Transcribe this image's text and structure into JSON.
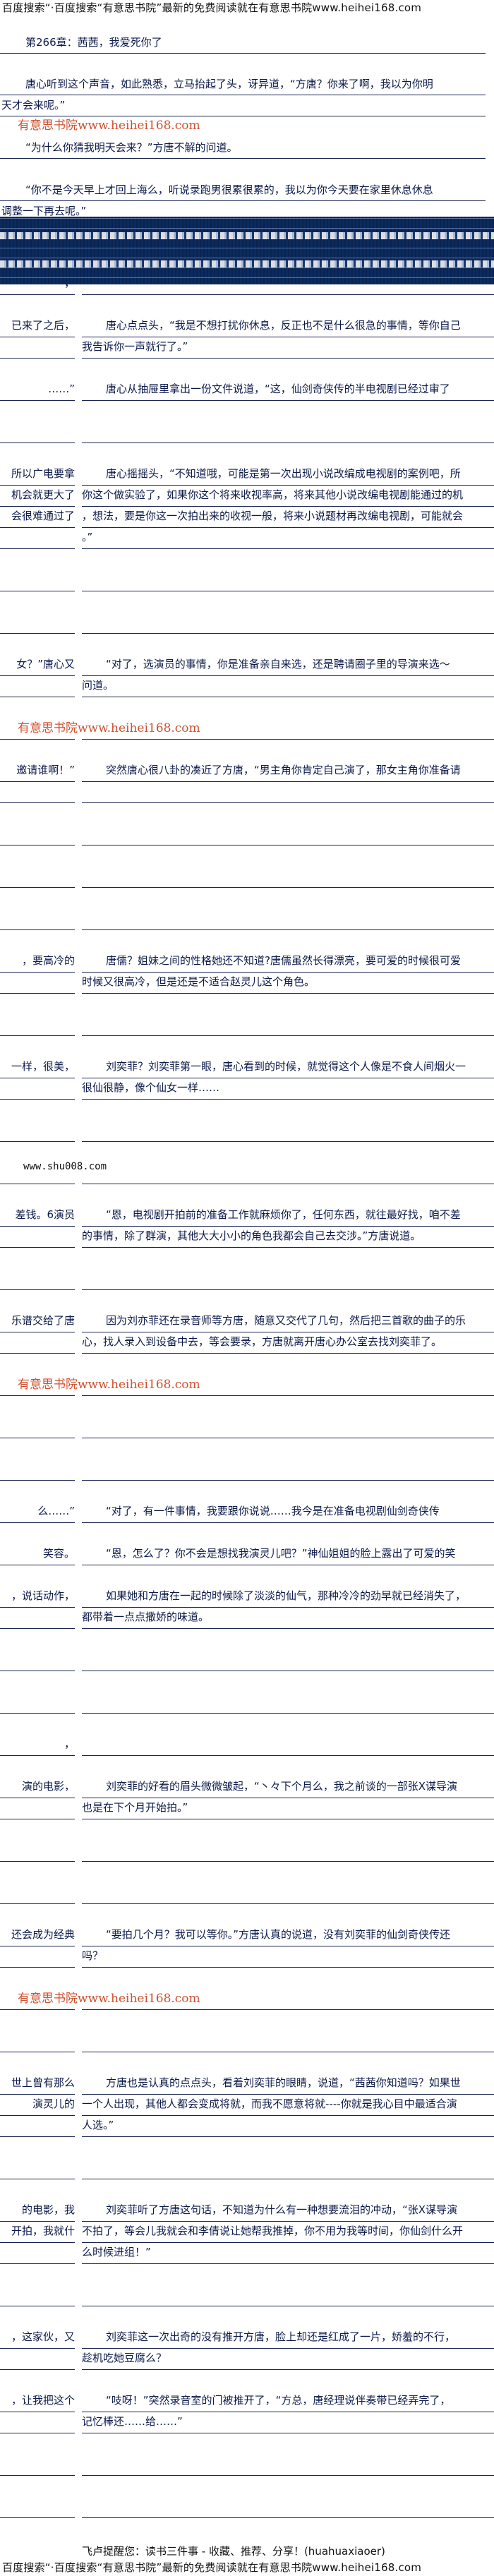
{
  "header_banner": "百度搜索“·百度搜索“有意思书院”最新的免费阅读就在有意思书院www.heihei168.com",
  "watermark": "有意思书院www.heihei168.com",
  "colors": {
    "text": "#0c1a4a",
    "band": "#0b2b5f",
    "watermark": "#d0502e"
  },
  "top_lines": [
    {
      "text": "第266章：茜茜，我爱死你了",
      "indent": true
    },
    {
      "text": "唐心听到这个声音，如此熟悉，立马抬起了头，讶异道，“方唐？你来了啊，我以为你明",
      "indent": true
    },
    {
      "text": "天才会来呢。”",
      "indent": false
    },
    {
      "text": "“为什么你猜我明天会来？”方唐不解的问道。",
      "indent": true
    },
    {
      "text": "“你不是今天早上才回上海么，听说录跑男很累很累的，我以为你今天要在家里休息休息",
      "indent": true
    },
    {
      "text": "调整一下再去呢。”",
      "indent": false
    }
  ],
  "rows": [
    {
      "kind": "start",
      "left": "，",
      "right": ""
    },
    {
      "kind": "start",
      "left": "已来了之后，",
      "right": "唐心点点头，“我是不想打扰你休息，反正也不是什么很急的事情，等你自己"
    },
    {
      "kind": "cont",
      "left": "",
      "right": "我告诉你一声就行了。”"
    },
    {
      "kind": "start",
      "left": "……”",
      "right": "唐心从抽屉里拿出一份文件说道，“这，仙剑奇侠传的半电视剧已经过审了"
    },
    {
      "kind": "start",
      "left": "",
      "right": ""
    },
    {
      "kind": "start",
      "left": "所以广电要拿",
      "right": "唐心摇摇头，“不知道哦，可能是第一次出现小说改编成电视剧的案例吧，所"
    },
    {
      "kind": "cont",
      "left": "机会就更大了",
      "right": "你这个做实验了，如果你这个将来收视率高，将来其他小说改编电视剧能通过的机"
    },
    {
      "kind": "cont",
      "left": "会很难通过了",
      "right": "，想法，要是你这一次拍出来的收视一般，将来小说题材再改编电视剧，可能就会"
    },
    {
      "kind": "cont",
      "left": "",
      "right": "。”"
    },
    {
      "kind": "start",
      "left": "",
      "right": ""
    },
    {
      "kind": "start",
      "left": "",
      "right": ""
    },
    {
      "kind": "start",
      "left": "女？”唐心又",
      "right": "“对了，选演员的事情，你是准备亲自来选，还是聘请圈子里的导演来选～"
    },
    {
      "kind": "cont",
      "left": "",
      "right": "问道。"
    },
    {
      "kind": "start",
      "left": "",
      "right": ""
    },
    {
      "kind": "start",
      "left": "邀请谁啊！”",
      "right": "突然唐心很八卦的凑近了方唐，“男主角你肯定自己演了，那女主角你准备请"
    },
    {
      "kind": "cont",
      "left": "",
      "right": ""
    },
    {
      "kind": "start",
      "left": "",
      "right": ""
    },
    {
      "kind": "start",
      "left": "",
      "right": ""
    },
    {
      "kind": "start",
      "left": "",
      "right": ""
    },
    {
      "kind": "start",
      "left": "，要高冷的",
      "right": "唐儒？姐妹之间的性格她还不知道?唐儒虽然长得漂亮，要可爱的时候很可爱"
    },
    {
      "kind": "cont",
      "left": "",
      "right": "时候又很高冷，但是还是不适合赵灵儿这个角色。"
    },
    {
      "kind": "start",
      "left": "",
      "right": ""
    },
    {
      "kind": "start",
      "left": "一样，很美，",
      "right": "刘奕菲？刘奕菲第一眼，唐心看到的时候，就觉得这个人像是不食人间烟火一"
    },
    {
      "kind": "cont",
      "left": "",
      "right": "很仙很静，像个仙女一样……"
    },
    {
      "kind": "start",
      "left": "",
      "right": ""
    },
    {
      "kind": "start",
      "left": "",
      "right": ""
    },
    {
      "kind": "start",
      "left": "差钱。6演员",
      "right": "“恩，电视剧开拍前的准备工作就麻烦你了，任何东西，就往最好找，咱不差"
    },
    {
      "kind": "cont",
      "left": "",
      "right": "的事情，除了群演，其他大大小小的角色我都会自己去交涉。”方唐说道。"
    },
    {
      "kind": "start",
      "left": "",
      "right": ""
    },
    {
      "kind": "start",
      "left": "乐谱交给了唐",
      "right": "因为刘亦菲还在录音师等方唐，随意又交代了几句，然后把三首歌的曲子的乐"
    },
    {
      "kind": "cont",
      "left": "",
      "right": "心，找人录入到设备中去，等会要录，方唐就离开唐心办公室去找刘奕菲了。"
    },
    {
      "kind": "start",
      "left": "",
      "right": ""
    },
    {
      "kind": "start",
      "left": "",
      "right": ""
    },
    {
      "kind": "start",
      "left": "",
      "right": ""
    },
    {
      "kind": "start",
      "left": "么……”",
      "right": "“对了，有一件事情，我要跟你说说……我今是在准备电视剧仙剑奇侠传"
    },
    {
      "kind": "start",
      "left": "笑容。",
      "right": "“恩，怎么了？你不会是想找我演灵儿吧？”神仙姐姐的脸上露出了可爱的笑"
    },
    {
      "kind": "start",
      "left": "，说话动作，",
      "right": "如果她和方唐在一起的时候除了淡淡的仙气，那种冷冷的劲早就已经消失了，"
    },
    {
      "kind": "cont",
      "left": "",
      "right": "都带着一点点撒娇的味道。"
    },
    {
      "kind": "start",
      "left": "",
      "right": ""
    },
    {
      "kind": "start",
      "left": "",
      "right": ""
    },
    {
      "kind": "start",
      "left": "，",
      "right": ""
    },
    {
      "kind": "start",
      "left": "演的电影，",
      "right": "刘奕菲的好看的眉头微微皱起，“丶々下个月么，我之前谈的一部张X谋导演"
    },
    {
      "kind": "cont",
      "left": "",
      "right": "也是在下个月开始拍。”"
    },
    {
      "kind": "start",
      "left": "",
      "right": ""
    },
    {
      "kind": "start",
      "left": "",
      "right": ""
    },
    {
      "kind": "start",
      "left": "还会成为经典",
      "right": "“要拍几个月？我可以等你。”方唐认真的说道，没有刘奕菲的仙剑奇侠传还"
    },
    {
      "kind": "cont",
      "left": "",
      "right": "吗？"
    },
    {
      "kind": "start",
      "left": "",
      "right": ""
    },
    {
      "kind": "start",
      "left": "",
      "right": ""
    },
    {
      "kind": "start",
      "left": "世上曾有那么",
      "right": "方唐也是认真的点点头，看着刘奕菲的眼睛，说道，“茜茜你知道吗？如果世"
    },
    {
      "kind": "cont",
      "left": "演灵儿的",
      "right": "一个人出现，其他人都会变成将就，而我不愿意将就----你就是我心目中最适合演"
    },
    {
      "kind": "cont",
      "left": "",
      "right": "人选。”"
    },
    {
      "kind": "start",
      "left": "",
      "right": ""
    },
    {
      "kind": "start",
      "left": "的电影，我",
      "right": "刘奕菲听了方唐这句话，不知道为什么有一种想要流泪的冲动，“张X谋导演"
    },
    {
      "kind": "cont",
      "left": "开拍，我就什",
      "right": "不拍了，等会儿我就会和李倩说让她帮我推掉，你不用为我等时间，你仙剑什么开"
    },
    {
      "kind": "cont",
      "left": "",
      "right": "么时候进组！”"
    },
    {
      "kind": "start",
      "left": "",
      "right": ""
    },
    {
      "kind": "start",
      "left": "，这家伙，又",
      "right": "刘奕菲这一次出奇的没有推开方唐，脸上却还是红成了一片，娇羞的不行，"
    },
    {
      "kind": "cont",
      "left": "",
      "right": "趁机吃她豆腐么？"
    },
    {
      "kind": "start",
      "left": "，让我把这个",
      "right": "“吱呀！”突然录音室的门被推开了，“方总，唐经理说伴奏带已经弄完了，"
    },
    {
      "kind": "cont",
      "left": "",
      "right": "记忆棒还……给……”"
    },
    {
      "kind": "start",
      "left": "",
      "right": ""
    },
    {
      "kind": "start",
      "left": "",
      "right": ""
    }
  ],
  "mid_site_link": "www.shu008.com",
  "reminder": "飞卢提醒您：读书三件事 - 收藏、推荐、分享！(huahuaxiaoer)",
  "footer_banner": "百度搜索“·百度搜索“有意思书院”最新的免费阅读就在有意思书院www.heihei168.com"
}
